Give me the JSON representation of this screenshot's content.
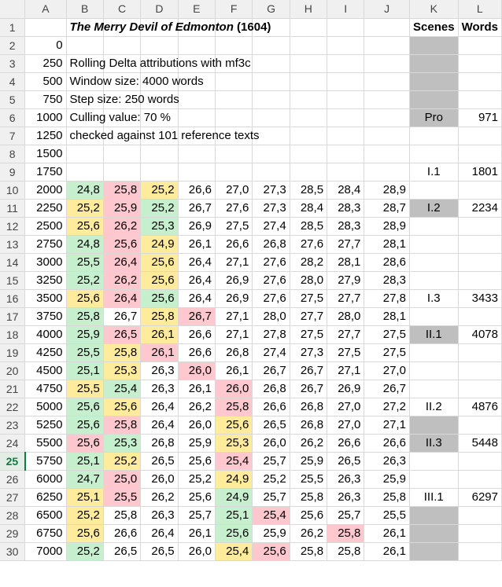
{
  "columns": [
    "A",
    "B",
    "C",
    "D",
    "E",
    "F",
    "G",
    "H",
    "I",
    "J",
    "K",
    "L"
  ],
  "header_row1": {
    "title": "The Merry Devil of Edmonton",
    "year": " (1604)",
    "scenes_label": "Scenes",
    "words_label": "Words"
  },
  "notes": [
    "Rolling Delta attributions with mf3c",
    "Window size: 4000 words",
    "Step size: 250 words",
    "Culling value: 70 %",
    "checked against 101 reference texts"
  ],
  "col_a": [
    "",
    "0",
    "250",
    "500",
    "750",
    "1000",
    "1250",
    "1500",
    "1750",
    "2000",
    "2250",
    "2500",
    "2750",
    "3000",
    "3250",
    "3500",
    "3750",
    "4000",
    "4250",
    "4500",
    "4750",
    "5000",
    "5250",
    "5500",
    "5750",
    "6000",
    "6250",
    "6500",
    "6750",
    "7000"
  ],
  "values": [
    [
      "24,8",
      "25,8",
      "25,2",
      "26,6",
      "27,0",
      "27,3",
      "28,5",
      "28,4",
      "28,9"
    ],
    [
      "25,2",
      "25,9",
      "25,2",
      "26,7",
      "27,6",
      "27,3",
      "28,4",
      "28,3",
      "28,7"
    ],
    [
      "25,6",
      "26,2",
      "25,3",
      "26,9",
      "27,5",
      "27,4",
      "28,5",
      "28,3",
      "28,9"
    ],
    [
      "24,8",
      "25,6",
      "24,9",
      "26,1",
      "26,6",
      "26,8",
      "27,6",
      "27,7",
      "28,1"
    ],
    [
      "25,5",
      "26,4",
      "25,6",
      "26,4",
      "27,1",
      "27,6",
      "28,2",
      "28,1",
      "28,6"
    ],
    [
      "25,2",
      "26,2",
      "25,6",
      "26,4",
      "26,9",
      "27,6",
      "28,0",
      "27,9",
      "28,3"
    ],
    [
      "25,6",
      "26,4",
      "25,6",
      "26,4",
      "26,9",
      "27,6",
      "27,5",
      "27,7",
      "27,8"
    ],
    [
      "25,8",
      "26,7",
      "25,8",
      "26,7",
      "27,1",
      "28,0",
      "27,7",
      "28,0",
      "28,1"
    ],
    [
      "25,9",
      "26,5",
      "26,1",
      "26,6",
      "27,1",
      "27,8",
      "27,5",
      "27,7",
      "27,5"
    ],
    [
      "25,5",
      "25,8",
      "26,1",
      "26,6",
      "26,8",
      "27,4",
      "27,3",
      "27,5",
      "27,5"
    ],
    [
      "25,1",
      "25,3",
      "26,3",
      "26,0",
      "26,1",
      "26,7",
      "26,7",
      "27,1",
      "27,0"
    ],
    [
      "25,5",
      "25,4",
      "26,3",
      "26,1",
      "26,0",
      "26,8",
      "26,7",
      "26,9",
      "26,7"
    ],
    [
      "25,6",
      "25,6",
      "26,4",
      "26,2",
      "25,8",
      "26,6",
      "26,8",
      "27,0",
      "27,2"
    ],
    [
      "25,6",
      "25,8",
      "26,4",
      "26,0",
      "25,6",
      "26,5",
      "26,8",
      "27,0",
      "27,1"
    ],
    [
      "25,6",
      "25,3",
      "26,8",
      "25,9",
      "25,3",
      "26,0",
      "26,2",
      "26,6",
      "26,6"
    ],
    [
      "25,1",
      "25,2",
      "26,5",
      "25,6",
      "25,4",
      "25,7",
      "25,9",
      "26,5",
      "26,3"
    ],
    [
      "24,7",
      "25,0",
      "26,0",
      "25,2",
      "24,9",
      "25,2",
      "25,5",
      "26,3",
      "25,9"
    ],
    [
      "25,1",
      "25,5",
      "26,2",
      "25,6",
      "24,9",
      "25,7",
      "25,8",
      "26,3",
      "25,8"
    ],
    [
      "25,2",
      "25,8",
      "26,3",
      "25,7",
      "25,1",
      "25,4",
      "25,6",
      "25,7",
      "25,5"
    ],
    [
      "25,6",
      "26,6",
      "26,4",
      "26,1",
      "25,6",
      "25,9",
      "26,2",
      "25,8",
      "26,1"
    ],
    [
      "25,2",
      "26,5",
      "26,5",
      "26,0",
      "25,4",
      "25,6",
      "25,8",
      "25,8",
      "26,1"
    ]
  ],
  "colors": [
    [
      "g",
      "r",
      "y",
      "",
      "",
      "",
      "",
      "",
      ""
    ],
    [
      "y",
      "r",
      "g",
      "",
      "",
      "",
      "",
      "",
      ""
    ],
    [
      "y",
      "r",
      "g",
      "",
      "",
      "",
      "",
      "",
      ""
    ],
    [
      "g",
      "r",
      "y",
      "",
      "",
      "",
      "",
      "",
      ""
    ],
    [
      "g",
      "r",
      "y",
      "",
      "",
      "",
      "",
      "",
      ""
    ],
    [
      "g",
      "r",
      "y",
      "",
      "",
      "",
      "",
      "",
      ""
    ],
    [
      "y",
      "r",
      "g",
      "",
      "",
      "",
      "",
      "",
      ""
    ],
    [
      "g",
      "",
      "y",
      "r",
      "",
      "",
      "",
      "",
      ""
    ],
    [
      "g",
      "r",
      "y",
      "",
      "",
      "",
      "",
      "",
      ""
    ],
    [
      "g",
      "y",
      "r",
      "",
      "",
      "",
      "",
      "",
      ""
    ],
    [
      "g",
      "y",
      "",
      "r",
      "",
      "",
      "",
      "",
      ""
    ],
    [
      "y",
      "g",
      "",
      "",
      "r",
      "",
      "",
      "",
      ""
    ],
    [
      "g",
      "y",
      "",
      "",
      "r",
      "",
      "",
      "",
      ""
    ],
    [
      "g",
      "r",
      "",
      "",
      "y",
      "",
      "",
      "",
      ""
    ],
    [
      "r",
      "g",
      "",
      "",
      "y",
      "",
      "",
      "",
      ""
    ],
    [
      "g",
      "y",
      "",
      "",
      "r",
      "",
      "",
      "",
      ""
    ],
    [
      "g",
      "r",
      "",
      "",
      "y",
      "",
      "",
      "",
      ""
    ],
    [
      "y",
      "r",
      "",
      "",
      "g",
      "",
      "",
      "",
      ""
    ],
    [
      "y",
      "",
      "",
      "",
      "g",
      "r",
      "",
      "",
      ""
    ],
    [
      "y",
      "",
      "",
      "",
      "g",
      "",
      "",
      "r",
      ""
    ],
    [
      "g",
      "",
      "",
      "",
      "y",
      "r",
      "",
      "",
      ""
    ]
  ],
  "scenes": {
    "6": {
      "label": "Pro",
      "words": "971"
    },
    "9": {
      "label": "I.1",
      "words": "1801"
    },
    "11": {
      "label": "I.2",
      "words": "2234"
    },
    "16": {
      "label": "I.3",
      "words": "3433"
    },
    "18": {
      "label": "II.1",
      "words": "4078"
    },
    "22": {
      "label": "II.2",
      "words": "4876"
    },
    "24": {
      "label": "II.3",
      "words": "5448"
    },
    "27": {
      "label": "III.1",
      "words": "6297"
    }
  },
  "k_gray_rows": [
    2,
    3,
    4,
    5,
    6,
    11,
    18,
    23,
    24,
    28,
    29,
    30
  ],
  "selected_row": 25,
  "palette": {
    "green": "#c6efce",
    "red": "#ffc7ce",
    "yellow": "#ffeb9c",
    "gray": "#bfbfbf"
  }
}
